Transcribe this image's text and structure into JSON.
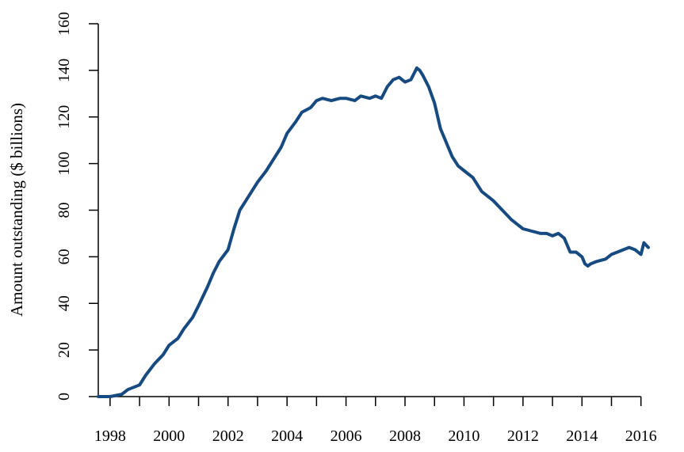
{
  "chart_data": {
    "type": "line",
    "title": "",
    "xlabel": "",
    "ylabel": "Amount outstanding ($ billions)",
    "xlim": [
      1997.6,
      2016.25
    ],
    "ylim": [
      0,
      160
    ],
    "grid": false,
    "x_ticks": [
      1998,
      1999,
      2000,
      2001,
      2002,
      2003,
      2004,
      2005,
      2006,
      2007,
      2008,
      2009,
      2010,
      2011,
      2012,
      2013,
      2014,
      2015,
      2016
    ],
    "x_tick_labels": [
      "1998",
      "",
      "2000",
      "",
      "2002",
      "",
      "2004",
      "",
      "2006",
      "",
      "2008",
      "",
      "2010",
      "",
      "2012",
      "",
      "2014",
      "",
      "2016"
    ],
    "y_ticks": [
      0,
      20,
      40,
      60,
      80,
      100,
      120,
      140,
      160
    ],
    "y_tick_labels": [
      "0",
      "20",
      "40",
      "60",
      "80",
      "100",
      "120",
      "140",
      "160"
    ],
    "colors": {
      "series": "#174a80"
    },
    "series": [
      {
        "name": "",
        "x": [
          1997.6,
          1998.0,
          1998.4,
          1998.6,
          1999.0,
          1999.2,
          1999.5,
          1999.8,
          2000.0,
          2000.3,
          2000.5,
          2000.8,
          2001.0,
          2001.3,
          2001.5,
          2001.7,
          2002.0,
          2002.2,
          2002.4,
          2002.6,
          2002.8,
          2003.0,
          2003.3,
          2003.5,
          2003.8,
          2004.0,
          2004.3,
          2004.5,
          2004.8,
          2005.0,
          2005.2,
          2005.5,
          2005.8,
          2006.0,
          2006.3,
          2006.5,
          2006.8,
          2007.0,
          2007.2,
          2007.4,
          2007.6,
          2007.8,
          2008.0,
          2008.2,
          2008.4,
          2008.5,
          2008.6,
          2008.8,
          2009.0,
          2009.2,
          2009.4,
          2009.6,
          2009.8,
          2010.0,
          2010.3,
          2010.6,
          2010.8,
          2011.0,
          2011.3,
          2011.6,
          2011.8,
          2012.0,
          2012.3,
          2012.6,
          2012.8,
          2013.0,
          2013.2,
          2013.4,
          2013.6,
          2013.8,
          2014.0,
          2014.1,
          2014.2,
          2014.3,
          2014.5,
          2014.8,
          2015.0,
          2015.2,
          2015.4,
          2015.6,
          2015.8,
          2015.9,
          2016.0,
          2016.1,
          2016.25
        ],
        "y": [
          0,
          0,
          1,
          3,
          5,
          9,
          14,
          18,
          22,
          25,
          29,
          34,
          39,
          47,
          53,
          58,
          63,
          72,
          80,
          84,
          88,
          92,
          97,
          101,
          107,
          113,
          118,
          122,
          124,
          127,
          128,
          127,
          128,
          128,
          127,
          129,
          128,
          129,
          128,
          133,
          136,
          137,
          135,
          136,
          141,
          140,
          138,
          133,
          126,
          115,
          109,
          103,
          99,
          97,
          94,
          88,
          86,
          84,
          80,
          76,
          74,
          72,
          71,
          70,
          70,
          69,
          70,
          68,
          62,
          62,
          60,
          57,
          56,
          57,
          58,
          59,
          61,
          62,
          63,
          64,
          63,
          62,
          61,
          66,
          64
        ]
      }
    ]
  }
}
